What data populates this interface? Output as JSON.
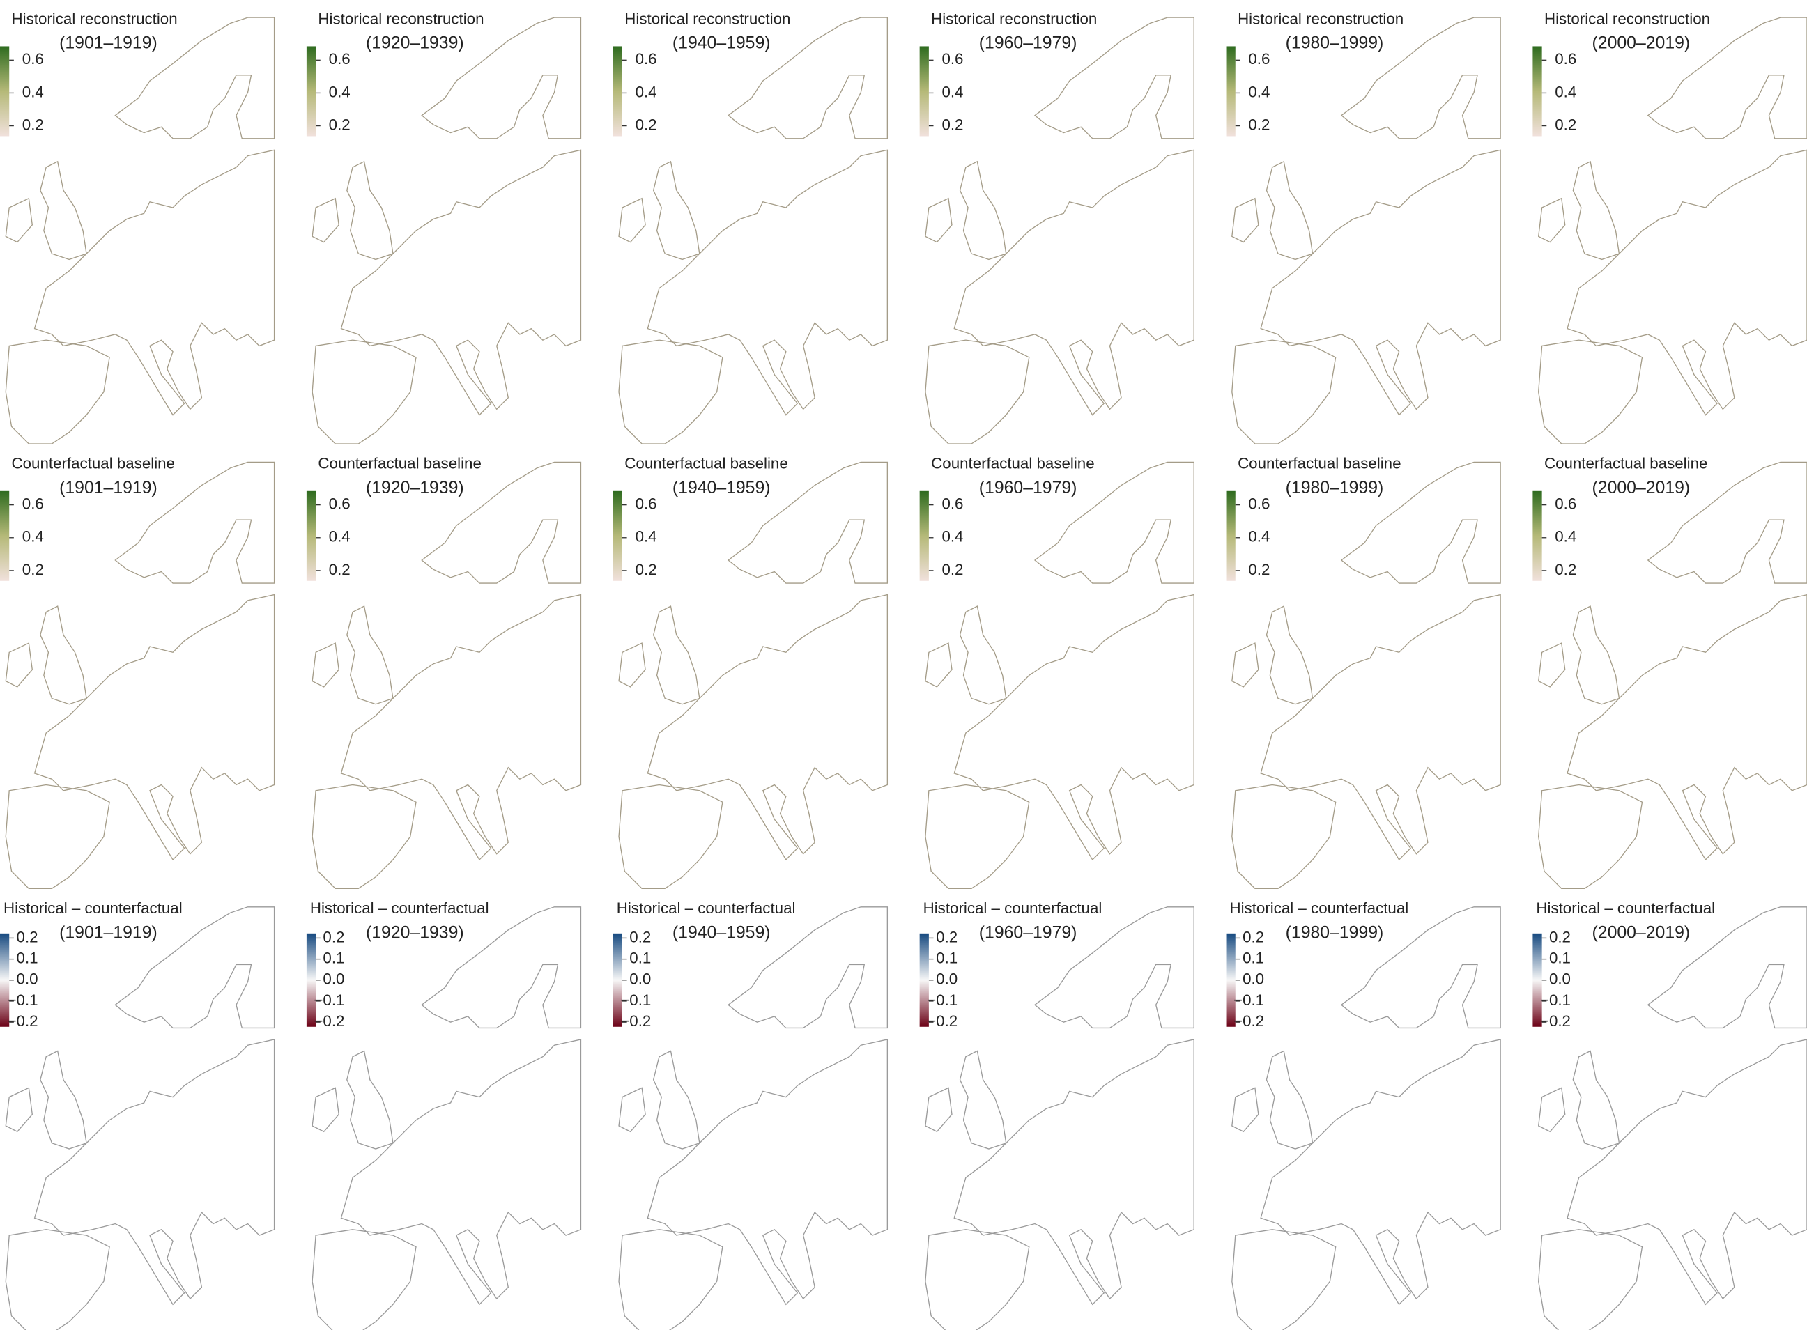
{
  "rows": [
    {
      "title": "Historical reconstruction",
      "colorbar_ticks": [
        0.2,
        0.4,
        0.6
      ],
      "panels": [
        {
          "period": "(1901–1919)"
        },
        {
          "period": "(1920–1939)"
        },
        {
          "period": "(1940–1959)"
        },
        {
          "period": "(1960–1979)"
        },
        {
          "period": "(1980–1999)"
        },
        {
          "period": "(2000–2019)"
        }
      ]
    },
    {
      "title": "Counterfactual baseline",
      "colorbar_ticks": [
        0.2,
        0.4,
        0.6
      ],
      "panels": [
        {
          "period": "(1901–1919)"
        },
        {
          "period": "(1920–1939)"
        },
        {
          "period": "(1940–1959)"
        },
        {
          "period": "(1960–1979)"
        },
        {
          "period": "(1980–1999)"
        },
        {
          "period": "(2000–2019)"
        }
      ]
    },
    {
      "title": "Historical – counterfactual",
      "colorbar_ticks": [
        {
          "value": -0.2,
          "label": "−0.2"
        },
        {
          "value": -0.1,
          "label": "−0.1"
        },
        {
          "value": 0,
          "label": "0.0"
        },
        0.1,
        0.2
      ],
      "panels": [
        {
          "period": "(1901–1919)"
        },
        {
          "period": "(1920–1939)"
        },
        {
          "period": "(1940–1959)"
        },
        {
          "period": "(1960–1979)"
        },
        {
          "period": "(1980–1999)"
        },
        {
          "period": "(2000–2019)"
        }
      ]
    }
  ]
}
